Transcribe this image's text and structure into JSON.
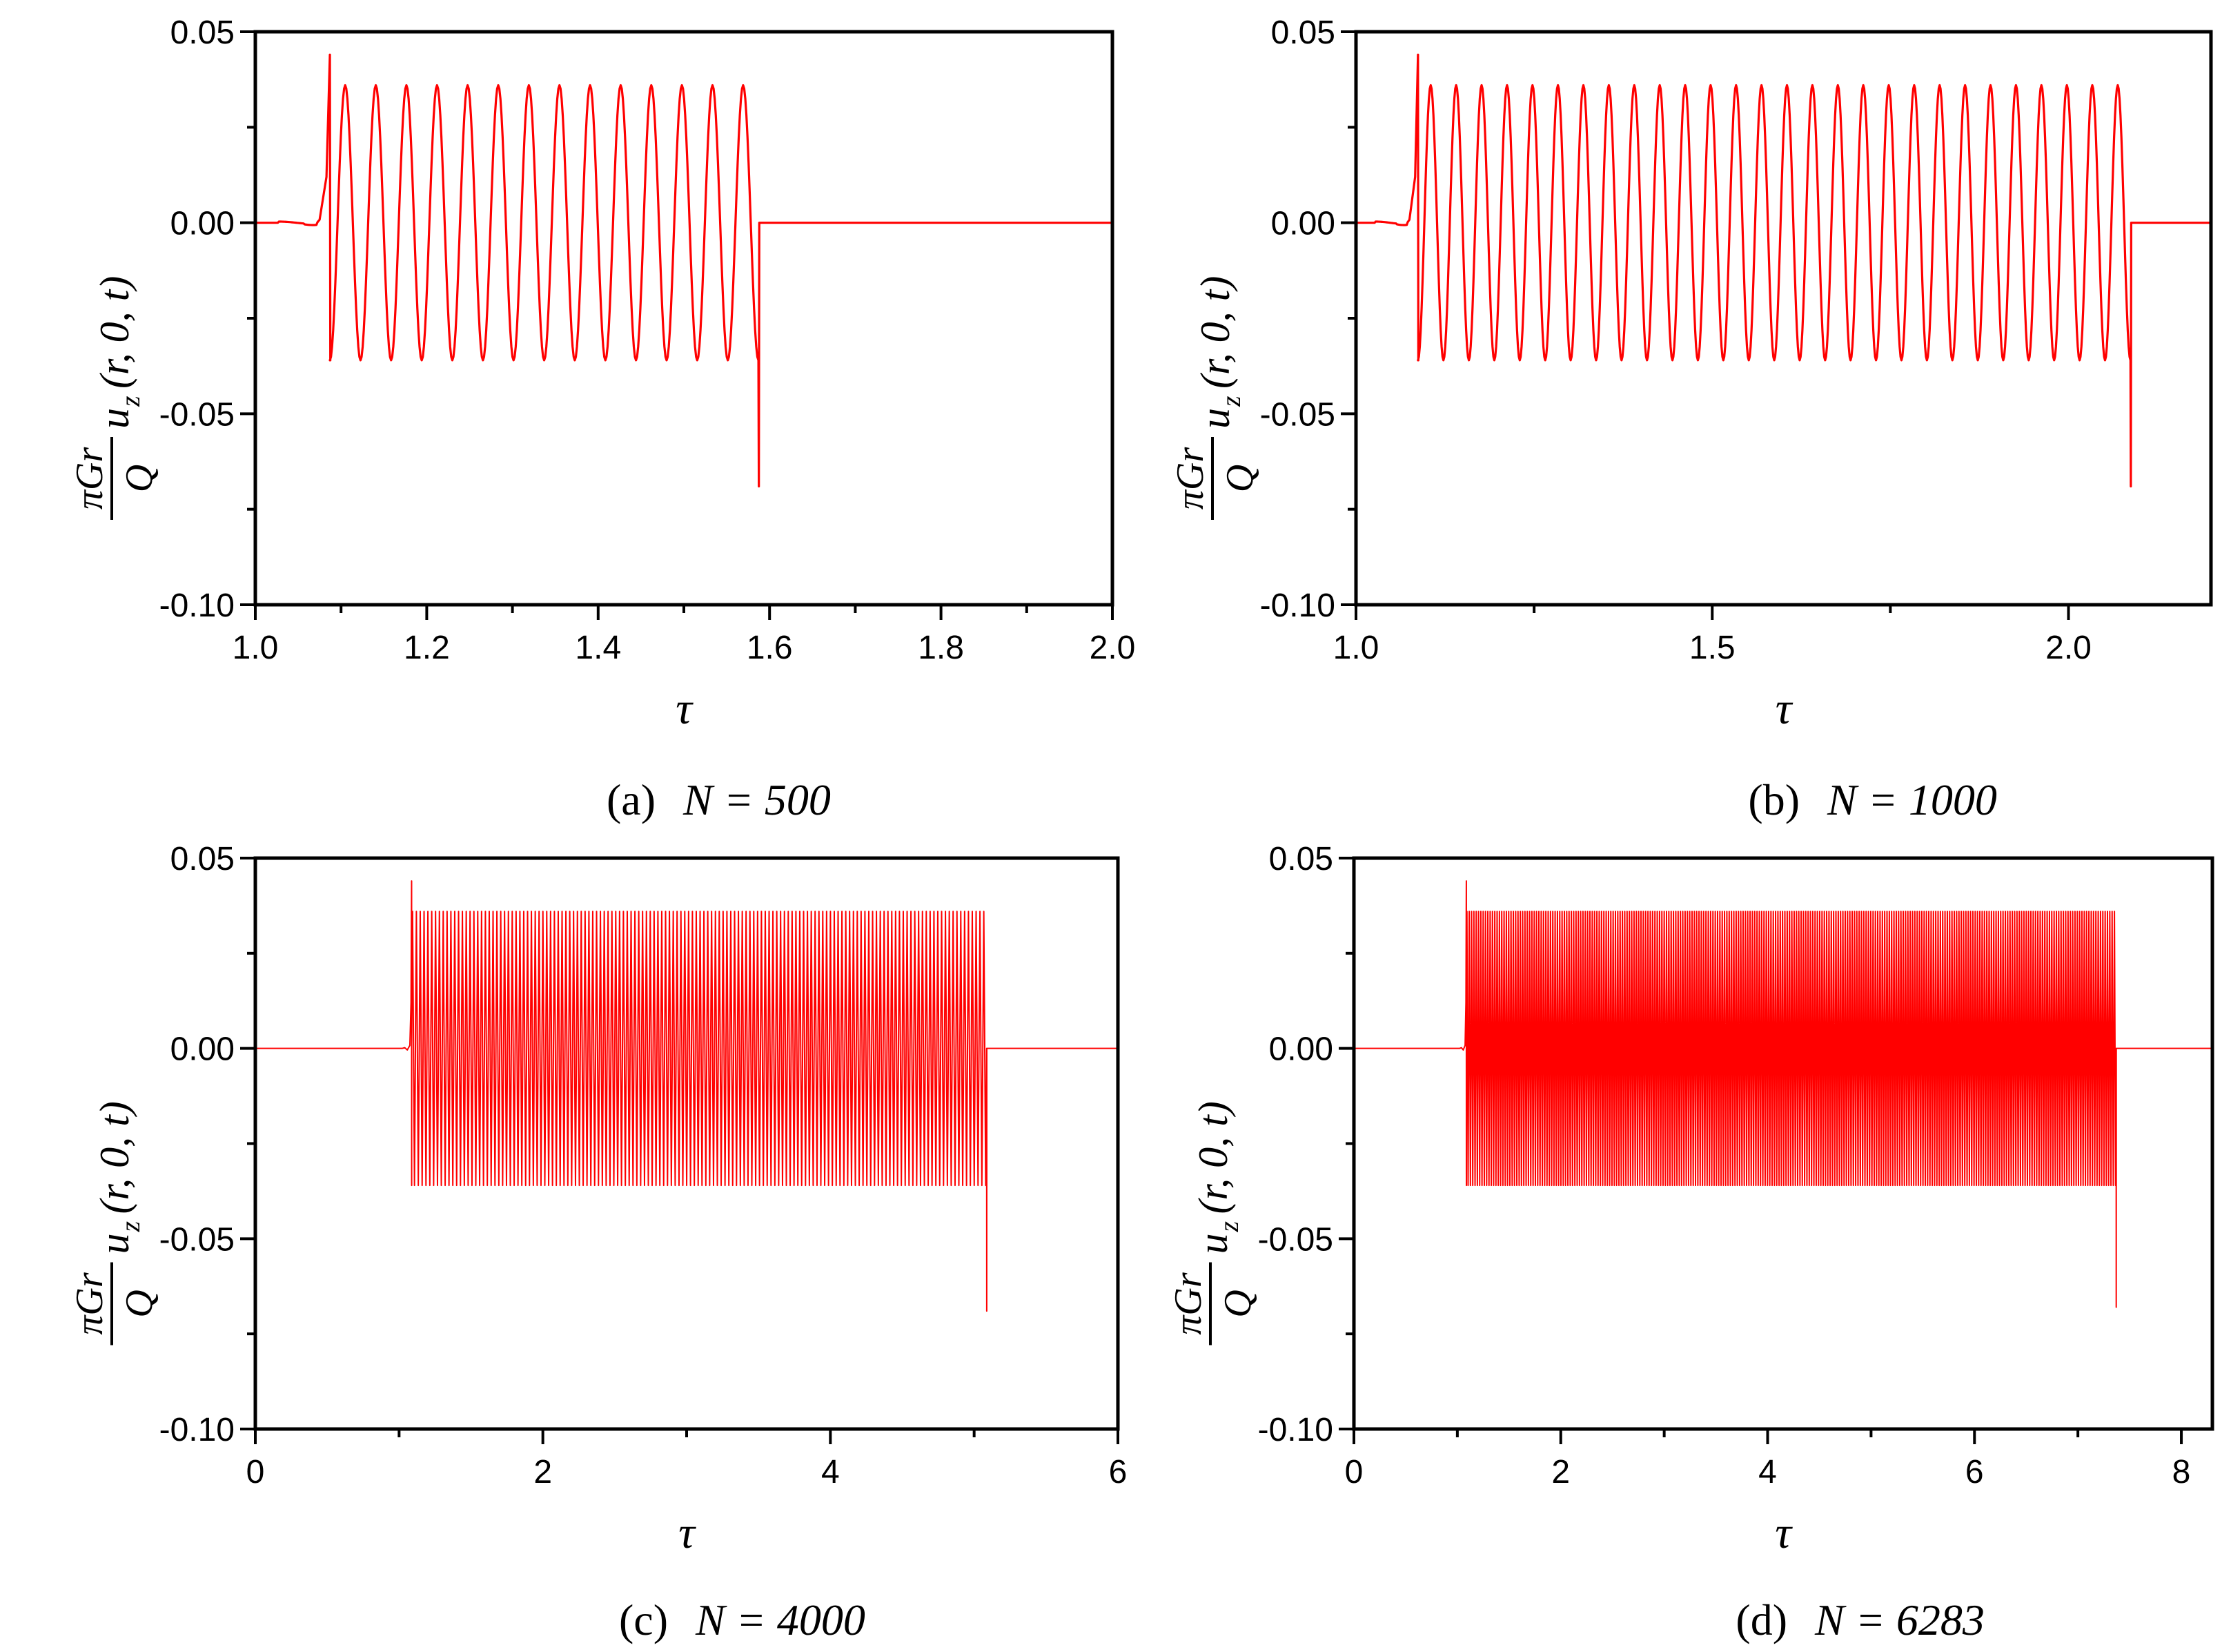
{
  "colors": {
    "series": "#ff0000",
    "axis": "#000000",
    "background": "#ffffff"
  },
  "chart_data": [
    {
      "id": "a",
      "type": "line",
      "caption_prefix": "(a)",
      "caption_eq": "N = 500",
      "N": 500,
      "xlabel": "τ",
      "ylabel": {
        "numerator": "πGr",
        "denominator": "Q",
        "rest": "u",
        "sub": "z",
        "args": "(r, 0, t)"
      },
      "xlim": [
        1.0,
        2.0
      ],
      "ylim": [
        -0.1,
        0.05
      ],
      "xticks": [
        "1.0",
        "1.2",
        "1.4",
        "1.6",
        "1.8",
        "2.0"
      ],
      "xtick_values": [
        1.0,
        1.2,
        1.4,
        1.6,
        1.8,
        2.0
      ],
      "yticks": [
        "0.05",
        "0.00",
        "-0.05",
        "-0.10"
      ],
      "ytick_values": [
        0.05,
        0.0,
        -0.05,
        -0.1
      ],
      "signal": {
        "onset": 1.087,
        "end": 1.587,
        "amplitude": 0.036,
        "spike_peak": 0.044,
        "spike_trough": -0.069,
        "cycles": 14
      }
    },
    {
      "id": "b",
      "type": "line",
      "caption_prefix": "(b)",
      "caption_eq": "N = 1000",
      "N": 1000,
      "xlabel": "τ",
      "ylabel": {
        "numerator": "πGr",
        "denominator": "Q",
        "rest": "u",
        "sub": "z",
        "args": "(r, 0, t)"
      },
      "xlim": [
        1.0,
        2.2
      ],
      "ylim": [
        -0.1,
        0.05
      ],
      "xticks": [
        "1.0",
        "1.5",
        "2.0"
      ],
      "xtick_values": [
        1.0,
        1.5,
        2.0
      ],
      "yticks": [
        "0.05",
        "0.00",
        "-0.05",
        "-0.10"
      ],
      "ytick_values": [
        0.05,
        0.0,
        -0.05,
        -0.1
      ],
      "signal": {
        "onset": 1.087,
        "end": 2.087,
        "amplitude": 0.036,
        "spike_peak": 0.044,
        "spike_trough": -0.069,
        "cycles": 28
      }
    },
    {
      "id": "c",
      "type": "line",
      "caption_prefix": "(c)",
      "caption_eq": "N = 4000",
      "N": 4000,
      "xlabel": "τ",
      "ylabel": {
        "numerator": "πGr",
        "denominator": "Q",
        "rest": "u",
        "sub": "z",
        "args": "(r, 0, t)"
      },
      "xlim": [
        0,
        6
      ],
      "ylim": [
        -0.1,
        0.05
      ],
      "xticks": [
        "0",
        "2",
        "4",
        "6"
      ],
      "xtick_values": [
        0,
        2,
        4,
        6
      ],
      "yticks": [
        "0.05",
        "0.00",
        "-0.05",
        "-0.10"
      ],
      "ytick_values": [
        0.05,
        0.0,
        -0.05,
        -0.1
      ],
      "signal": {
        "onset": 1.087,
        "end": 5.087,
        "amplitude": 0.036,
        "spike_peak": 0.044,
        "spike_trough": -0.069,
        "cycles": 150
      }
    },
    {
      "id": "d",
      "type": "line",
      "caption_prefix": "(d)",
      "caption_eq": "N = 6283",
      "N": 6283,
      "xlabel": "τ",
      "ylabel": {
        "numerator": "πGr",
        "denominator": "Q",
        "rest": "u",
        "sub": "z",
        "args": "(r, 0, t)"
      },
      "xlim": [
        0,
        8.3
      ],
      "ylim": [
        -0.1,
        0.05
      ],
      "xticks": [
        "0",
        "2",
        "4",
        "6",
        "8"
      ],
      "xtick_values": [
        0,
        2,
        4,
        6,
        8
      ],
      "yticks": [
        "0.05",
        "0.00",
        "-0.05",
        "-0.10"
      ],
      "ytick_values": [
        0.05,
        0.0,
        -0.05,
        -0.1
      ],
      "signal": {
        "onset": 1.087,
        "end": 7.37,
        "amplitude": 0.036,
        "spike_peak": 0.044,
        "spike_trough": -0.068,
        "cycles": 280
      }
    }
  ]
}
